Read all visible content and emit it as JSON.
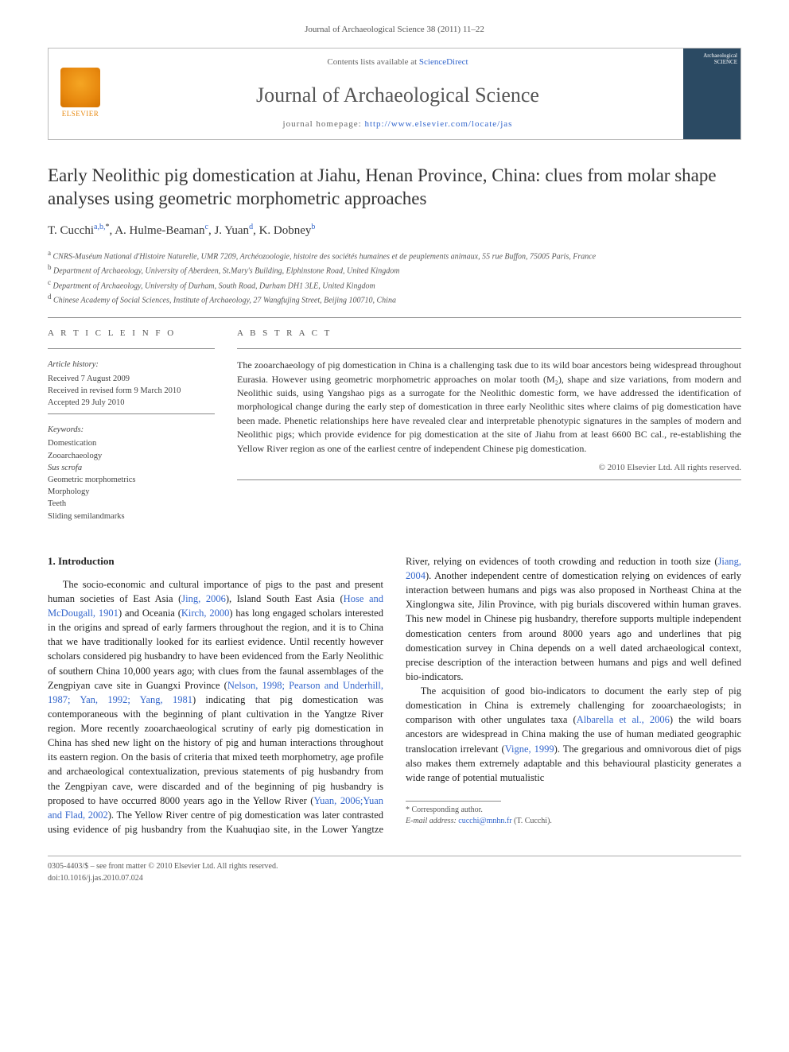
{
  "header": {
    "citation": "Journal of Archaeological Science 38 (2011) 11–22",
    "contents_prefix": "Contents lists available at ",
    "contents_link": "ScienceDirect",
    "journal_title": "Journal of Archaeological Science",
    "homepage_prefix": "journal homepage: ",
    "homepage_url": "http://www.elsevier.com/locate/jas",
    "elsevier_label": "ELSEVIER",
    "cover_title": "Archaeological SCIENCE"
  },
  "article": {
    "title": "Early Neolithic pig domestication at Jiahu, Henan Province, China: clues from molar shape analyses using geometric morphometric approaches",
    "authors_html": "T. Cucchi",
    "authors": [
      {
        "name": "T. Cucchi",
        "aff": "a,b,",
        "star": "*"
      },
      {
        "name": "A. Hulme-Beaman",
        "aff": "c"
      },
      {
        "name": "J. Yuan",
        "aff": "d"
      },
      {
        "name": "K. Dobney",
        "aff": "b"
      }
    ],
    "affiliations": [
      {
        "key": "a",
        "text": "CNRS-Muséum National d'Histoire Naturelle, UMR 7209, Archéozoologie, histoire des sociétés humaines et de peuplements animaux, 55 rue Buffon, 75005 Paris, France"
      },
      {
        "key": "b",
        "text": "Department of Archaeology, University of Aberdeen, St.Mary's Building, Elphinstone Road, United Kingdom"
      },
      {
        "key": "c",
        "text": "Department of Archaeology, University of Durham, South Road, Durham DH1 3LE, United Kingdom"
      },
      {
        "key": "d",
        "text": "Chinese Academy of Social Sciences, Institute of Archaeology, 27 Wangfujing Street, Beijing 100710, China"
      }
    ]
  },
  "info": {
    "heading": "A R T I C L E   I N F O",
    "history_label": "Article history:",
    "received": "Received 7 August 2009",
    "revised": "Received in revised form 9 March 2010",
    "accepted": "Accepted 29 July 2010",
    "keywords_label": "Keywords:",
    "keywords": [
      "Domestication",
      "Zooarchaeology",
      "Sus scrofa",
      "Geometric morphometrics",
      "Morphology",
      "Teeth",
      "Sliding semilandmarks"
    ]
  },
  "abstract": {
    "heading": "A B S T R A C T",
    "text": "The zooarchaeology of pig domestication in China is a challenging task due to its wild boar ancestors being widespread throughout Eurasia. However using geometric morphometric approaches on molar tooth (M₂), shape and size variations, from modern and Neolithic suids, using Yangshao pigs as a surrogate for the Neolithic domestic form, we have addressed the identification of morphological change during the early step of domestication in three early Neolithic sites where claims of pig domestication have been made. Phenetic relationships here have revealed clear and interpretable phenotypic signatures in the samples of modern and Neolithic pigs; which provide evidence for pig domestication at the site of Jiahu from at least 6600 BC cal., re-establishing the Yellow River region as one of the earliest centre of independent Chinese pig domestication.",
    "copyright": "© 2010 Elsevier Ltd. All rights reserved."
  },
  "body": {
    "section_number": "1.",
    "section_title": "Introduction",
    "col1_p1": "The socio-economic and cultural importance of pigs to the past and present human societies of East Asia (Jing, 2006), Island South East Asia (Hose and McDougall, 1901) and Oceania (Kirch, 2000) has long engaged scholars interested in the origins and spread of early farmers throughout the region, and it is to China that we have traditionally looked for its earliest evidence. Until recently however scholars considered pig husbandry to have been evidenced from the Early Neolithic of southern China 10,000 years ago; with clues from the faunal assemblages of the Zengpiyan cave site in Guangxi Province (Nelson, 1998; Pearson and Underhill, 1987; Yan, 1992; Yang, 1981) indicating that pig domestication was contemporaneous with the beginning of plant cultivation in the Yangtze River region. More recently zooarchaeological scrutiny of early pig domestication in China has shed new light on the history of pig and human interactions throughout its eastern region. On the basis of criteria that mixed teeth morphometry, age profile and archaeological contextualization, previous statements of pig husbandry from",
    "col2_p1": "the Zengpiyan cave, were discarded and of the beginning of pig husbandry is proposed to have occurred 8000 years ago in the Yellow River (Yuan, 2006;Yuan and Flad, 2002). The Yellow River centre of pig domestication was later contrasted using evidence of pig husbandry from the Kuahuqiao site, in the Lower Yangtze River, relying on evidences of tooth crowding and reduction in tooth size (Jiang, 2004). Another independent centre of domestication relying on evidences of early interaction between humans and pigs was also proposed in Northeast China at the Xinglongwa site, Jilin Province, with pig burials discovered within human graves. This new model in Chinese pig husbandry, therefore supports multiple independent domestication centers from around 8000 years ago and underlines that pig domestication survey in China depends on a well dated archaeological context, precise description of the interaction between humans and pigs and well defined bio-indicators.",
    "col2_p2": "The acquisition of good bio-indicators to document the early step of pig domestication in China is extremely challenging for zooarchaeologists; in comparison with other ungulates taxa (Albarella et al., 2006) the wild boars ancestors are widespread in China making the use of human mediated geographic translocation irrelevant (Vigne, 1999). The gregarious and omnivorous diet of pigs also makes them extremely adaptable and this behavioural plasticity generates a wide range of potential mutualistic",
    "refs": {
      "jing2006": "Jing, 2006",
      "hose1901": "Hose and McDougall, 1901",
      "kirch2000": "Kirch, 2000",
      "nelson_etc": "Nelson, 1998; Pearson and Underhill, 1987; Yan, 1992; Yang, 1981",
      "yuan2006": "Yuan, 2006;Yuan and Flad, 2002",
      "jiang2004": "Jiang, 2004",
      "albarella2006": "Albarella et al., 2006",
      "vigne1999": "Vigne, 1999"
    }
  },
  "footnote": {
    "corr_label": "* Corresponding author.",
    "email_label": "E-mail address:",
    "email": "cucchi@mnhn.fr",
    "email_name": "(T. Cucchi)."
  },
  "footer": {
    "left": "0305-4403/$ – see front matter © 2010 Elsevier Ltd. All rights reserved.",
    "doi": "doi:10.1016/j.jas.2010.07.024"
  },
  "colors": {
    "link": "#3366cc",
    "text": "#333333",
    "muted": "#555555",
    "rule": "#888888",
    "elsevier_orange": "#e8890f",
    "cover_bg": "#2b4a63"
  }
}
